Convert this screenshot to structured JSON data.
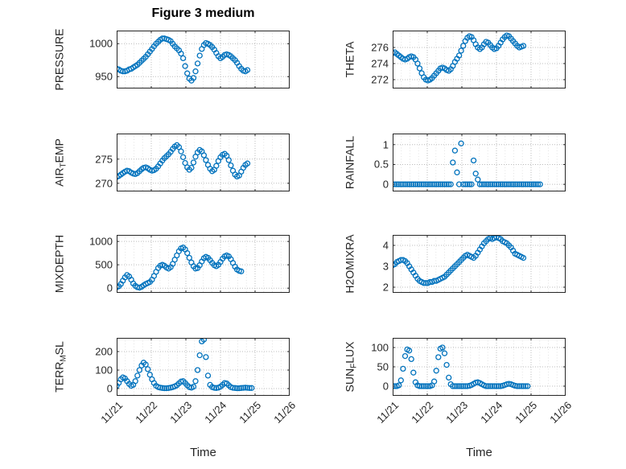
{
  "title": "Figure 3 medium",
  "xlabel": "Time",
  "x_tick_labels": [
    "11/21",
    "11/22",
    "11/23",
    "11/24",
    "11/25",
    "11/26"
  ],
  "colors": {
    "marker": "#0072BD",
    "axes": "#262626",
    "grid": "#bcbcbc",
    "grid_minor": "#e3e3e3",
    "text": "#262626",
    "background": "#ffffff"
  },
  "chart_data": [
    {
      "type": "scatter",
      "ylabel": {
        "pre": "PRESSURE",
        "sub": "",
        "post": ""
      },
      "yticks": [
        950,
        1000
      ],
      "ylim": [
        932,
        1020
      ],
      "xlim": [
        0,
        5
      ],
      "x": [
        0,
        0.06,
        0.12,
        0.18,
        0.24,
        0.3,
        0.36,
        0.42,
        0.48,
        0.54,
        0.6,
        0.66,
        0.72,
        0.78,
        0.84,
        0.9,
        0.96,
        1.02,
        1.08,
        1.14,
        1.2,
        1.26,
        1.32,
        1.38,
        1.44,
        1.5,
        1.56,
        1.62,
        1.68,
        1.74,
        1.8,
        1.86,
        1.92,
        1.98,
        2.04,
        2.1,
        2.16,
        2.22,
        2.28,
        2.34,
        2.4,
        2.46,
        2.52,
        2.58,
        2.64,
        2.7,
        2.76,
        2.82,
        2.88,
        2.94,
        3,
        3.06,
        3.12,
        3.18,
        3.24,
        3.3,
        3.36,
        3.42,
        3.48,
        3.54,
        3.6,
        3.66,
        3.72,
        3.78
      ],
      "y": [
        962,
        961,
        959,
        958,
        958,
        959,
        961,
        962,
        964,
        966,
        968,
        971,
        974,
        977,
        980,
        984,
        988,
        992,
        996,
        1000,
        1003,
        1006,
        1008,
        1008,
        1007,
        1006,
        1004,
        1000,
        996,
        993,
        990,
        985,
        978,
        966,
        955,
        947,
        944,
        948,
        958,
        970,
        982,
        992,
        998,
        1001,
        1000,
        998,
        995,
        991,
        986,
        981,
        978,
        980,
        983,
        984,
        983,
        981,
        978,
        975,
        971,
        966,
        962,
        959,
        958,
        960
      ]
    },
    {
      "type": "scatter",
      "ylabel": {
        "pre": "THETA",
        "sub": "",
        "post": ""
      },
      "yticks": [
        272,
        274,
        276
      ],
      "ylim": [
        270.9,
        278.1
      ],
      "xlim": [
        0,
        5
      ],
      "x": [
        0,
        0.06,
        0.12,
        0.18,
        0.24,
        0.3,
        0.36,
        0.42,
        0.48,
        0.54,
        0.6,
        0.66,
        0.72,
        0.78,
        0.84,
        0.9,
        0.96,
        1.02,
        1.08,
        1.14,
        1.2,
        1.26,
        1.32,
        1.38,
        1.44,
        1.5,
        1.56,
        1.62,
        1.68,
        1.74,
        1.8,
        1.86,
        1.92,
        1.98,
        2.04,
        2.1,
        2.16,
        2.22,
        2.28,
        2.34,
        2.4,
        2.46,
        2.52,
        2.58,
        2.64,
        2.7,
        2.76,
        2.82,
        2.88,
        2.94,
        3,
        3.06,
        3.12,
        3.18,
        3.24,
        3.3,
        3.36,
        3.42,
        3.48,
        3.54,
        3.6,
        3.66,
        3.72,
        3.78
      ],
      "y": [
        275.3,
        275.4,
        275.2,
        275,
        274.8,
        274.6,
        274.5,
        274.6,
        274.8,
        274.9,
        274.8,
        274.5,
        274,
        273.4,
        272.8,
        272.3,
        272,
        271.9,
        272,
        272.2,
        272.5,
        272.8,
        273.1,
        273.4,
        273.5,
        273.4,
        273.2,
        273.1,
        273.3,
        273.7,
        274.2,
        274.6,
        275,
        275.6,
        276.2,
        276.8,
        277.2,
        277.4,
        277.3,
        276.9,
        276.4,
        276,
        275.8,
        276,
        276.4,
        276.7,
        276.6,
        276.3,
        276,
        275.8,
        275.9,
        276.2,
        276.6,
        277,
        277.3,
        277.5,
        277.4,
        277.1,
        276.8,
        276.5,
        276.2,
        276,
        276.1,
        276.2
      ]
    },
    {
      "type": "scatter",
      "ylabel": {
        "pre": "AIR",
        "sub": "T",
        "post": "EMP"
      },
      "yticks": [
        270,
        275
      ],
      "ylim": [
        268.3,
        280.3
      ],
      "xlim": [
        0,
        5
      ],
      "x": [
        0,
        0.06,
        0.12,
        0.18,
        0.24,
        0.3,
        0.36,
        0.42,
        0.48,
        0.54,
        0.6,
        0.66,
        0.72,
        0.78,
        0.84,
        0.9,
        0.96,
        1.02,
        1.08,
        1.14,
        1.2,
        1.26,
        1.32,
        1.38,
        1.44,
        1.5,
        1.56,
        1.62,
        1.68,
        1.74,
        1.8,
        1.86,
        1.92,
        1.98,
        2.04,
        2.1,
        2.16,
        2.22,
        2.28,
        2.34,
        2.4,
        2.46,
        2.52,
        2.58,
        2.64,
        2.7,
        2.76,
        2.82,
        2.88,
        2.94,
        3,
        3.06,
        3.12,
        3.18,
        3.24,
        3.3,
        3.36,
        3.42,
        3.48,
        3.54,
        3.6,
        3.66,
        3.72,
        3.78
      ],
      "y": [
        271.3,
        271.5,
        271.8,
        272.1,
        272.4,
        272.6,
        272.5,
        272.2,
        272,
        271.9,
        272.1,
        272.5,
        272.9,
        273.2,
        273.3,
        273.1,
        272.8,
        272.6,
        272.7,
        273,
        273.5,
        274.1,
        274.7,
        275.2,
        275.6,
        276,
        276.5,
        277.1,
        277.6,
        277.9,
        277.5,
        276.6,
        275.4,
        274.2,
        273.3,
        272.8,
        273.2,
        274.3,
        275.5,
        276.4,
        276.9,
        276.6,
        275.8,
        274.8,
        273.8,
        273,
        272.5,
        272.8,
        273.6,
        274.6,
        275.4,
        275.9,
        276.1,
        275.7,
        274.8,
        273.7,
        272.6,
        271.8,
        271.4,
        271.6,
        272.4,
        273.2,
        273.8,
        274.1
      ]
    },
    {
      "type": "scatter",
      "ylabel": {
        "pre": "RAINFALL",
        "sub": "",
        "post": ""
      },
      "yticks": [
        0,
        0.5,
        1
      ],
      "ylim": [
        -0.18,
        1.28
      ],
      "xlim": [
        0,
        5
      ],
      "x": [
        0,
        0.06,
        0.12,
        0.18,
        0.24,
        0.3,
        0.36,
        0.42,
        0.48,
        0.54,
        0.6,
        0.66,
        0.72,
        0.78,
        0.84,
        0.9,
        0.96,
        1.02,
        1.08,
        1.14,
        1.2,
        1.26,
        1.32,
        1.38,
        1.44,
        1.5,
        1.56,
        1.62,
        1.68,
        1.74,
        1.8,
        1.86,
        1.92,
        1.98,
        2.04,
        2.1,
        2.16,
        2.22,
        2.28,
        2.34,
        2.4,
        2.46,
        2.52,
        2.58,
        2.64,
        2.7,
        2.76,
        2.82,
        2.88,
        2.94,
        3,
        3.06,
        3.12,
        3.18,
        3.24,
        3.3,
        3.36,
        3.42,
        3.48,
        3.54,
        3.6,
        3.66,
        3.72,
        3.78,
        3.84,
        3.9,
        3.96,
        4.02,
        4.08,
        4.14,
        4.2,
        4.26
      ],
      "y": [
        0,
        0,
        0,
        0,
        0,
        0,
        0,
        0,
        0,
        0,
        0,
        0,
        0,
        0,
        0,
        0,
        0,
        0,
        0,
        0,
        0,
        0,
        0,
        0,
        0,
        0,
        0,
        0,
        0,
        0.55,
        0.85,
        0.3,
        0,
        1.03,
        0,
        0,
        0,
        0,
        0,
        0.6,
        0.27,
        0.12,
        0,
        0,
        0,
        0,
        0,
        0,
        0,
        0,
        0,
        0,
        0,
        0,
        0,
        0,
        0,
        0,
        0,
        0,
        0,
        0,
        0,
        0,
        0,
        0,
        0,
        0,
        0,
        0,
        0,
        0
      ]
    },
    {
      "type": "scatter",
      "ylabel": {
        "pre": "MIXDEPTH",
        "sub": "",
        "post": ""
      },
      "yticks": [
        0,
        500,
        1000
      ],
      "ylim": [
        -100,
        1140
      ],
      "xlim": [
        0,
        5
      ],
      "x": [
        0,
        0.06,
        0.12,
        0.18,
        0.24,
        0.3,
        0.36,
        0.42,
        0.48,
        0.54,
        0.6,
        0.66,
        0.72,
        0.78,
        0.84,
        0.9,
        0.96,
        1.02,
        1.08,
        1.14,
        1.2,
        1.26,
        1.32,
        1.38,
        1.44,
        1.5,
        1.56,
        1.62,
        1.68,
        1.74,
        1.8,
        1.86,
        1.92,
        1.98,
        2.04,
        2.1,
        2.16,
        2.22,
        2.28,
        2.34,
        2.4,
        2.46,
        2.52,
        2.58,
        2.64,
        2.7,
        2.76,
        2.82,
        2.88,
        2.94,
        3,
        3.06,
        3.12,
        3.18,
        3.24,
        3.3,
        3.36,
        3.42,
        3.48,
        3.54,
        3.6
      ],
      "y": [
        20,
        40,
        90,
        160,
        230,
        280,
        250,
        180,
        100,
        50,
        20,
        10,
        30,
        60,
        90,
        110,
        130,
        180,
        260,
        350,
        430,
        480,
        500,
        480,
        440,
        420,
        450,
        520,
        610,
        700,
        790,
        850,
        870,
        830,
        750,
        650,
        550,
        470,
        420,
        430,
        490,
        570,
        640,
        670,
        650,
        600,
        540,
        490,
        470,
        500,
        560,
        630,
        680,
        700,
        680,
        620,
        540,
        460,
        400,
        370,
        360
      ]
    },
    {
      "type": "scatter",
      "ylabel": {
        "pre": "H2OMIXRA",
        "sub": "",
        "post": ""
      },
      "yticks": [
        2,
        3,
        4
      ],
      "ylim": [
        1.73,
        4.5
      ],
      "xlim": [
        0,
        5
      ],
      "x": [
        0,
        0.06,
        0.12,
        0.18,
        0.24,
        0.3,
        0.36,
        0.42,
        0.48,
        0.54,
        0.6,
        0.66,
        0.72,
        0.78,
        0.84,
        0.9,
        0.96,
        1.02,
        1.08,
        1.14,
        1.2,
        1.26,
        1.32,
        1.38,
        1.44,
        1.5,
        1.56,
        1.62,
        1.68,
        1.74,
        1.8,
        1.86,
        1.92,
        1.98,
        2.04,
        2.1,
        2.16,
        2.22,
        2.28,
        2.34,
        2.4,
        2.46,
        2.52,
        2.58,
        2.64,
        2.7,
        2.76,
        2.82,
        2.88,
        2.94,
        3,
        3.06,
        3.12,
        3.18,
        3.24,
        3.3,
        3.36,
        3.42,
        3.48,
        3.54,
        3.6,
        3.66,
        3.72,
        3.78
      ],
      "y": [
        3.05,
        3.1,
        3.2,
        3.25,
        3.3,
        3.3,
        3.25,
        3.15,
        3,
        2.85,
        2.7,
        2.55,
        2.4,
        2.3,
        2.25,
        2.2,
        2.2,
        2.2,
        2.25,
        2.25,
        2.3,
        2.3,
        2.35,
        2.4,
        2.45,
        2.5,
        2.6,
        2.7,
        2.8,
        2.9,
        3,
        3.1,
        3.2,
        3.3,
        3.4,
        3.5,
        3.55,
        3.5,
        3.45,
        3.4,
        3.5,
        3.65,
        3.8,
        3.95,
        4.1,
        4.2,
        4.3,
        4.35,
        4.3,
        4.35,
        4.4,
        4.35,
        4.3,
        4.2,
        4.15,
        4.1,
        4,
        3.9,
        3.75,
        3.6,
        3.55,
        3.5,
        3.45,
        3.4
      ]
    },
    {
      "type": "scatter",
      "ylabel": {
        "pre": "TERR",
        "sub": "M",
        "post": "SL"
      },
      "yticks": [
        0,
        100,
        200
      ],
      "ylim": [
        -39,
        274
      ],
      "xlim": [
        0,
        5
      ],
      "x": [
        0,
        0.06,
        0.12,
        0.18,
        0.24,
        0.3,
        0.36,
        0.42,
        0.48,
        0.54,
        0.6,
        0.66,
        0.72,
        0.78,
        0.84,
        0.9,
        0.96,
        1.02,
        1.08,
        1.14,
        1.2,
        1.26,
        1.32,
        1.38,
        1.44,
        1.5,
        1.56,
        1.62,
        1.68,
        1.74,
        1.8,
        1.86,
        1.92,
        1.98,
        2.04,
        2.1,
        2.16,
        2.22,
        2.28,
        2.34,
        2.4,
        2.46,
        2.52,
        2.58,
        2.64,
        2.7,
        2.76,
        2.82,
        2.88,
        2.94,
        3,
        3.06,
        3.12,
        3.18,
        3.24,
        3.3,
        3.36,
        3.42,
        3.48,
        3.54,
        3.6,
        3.66,
        3.72,
        3.78,
        3.84,
        3.9
      ],
      "y": [
        15,
        30,
        50,
        60,
        55,
        40,
        25,
        15,
        20,
        40,
        70,
        100,
        125,
        140,
        130,
        105,
        75,
        50,
        30,
        15,
        8,
        5,
        3,
        2,
        2,
        3,
        5,
        8,
        12,
        18,
        28,
        38,
        40,
        30,
        18,
        8,
        5,
        10,
        40,
        100,
        180,
        255,
        265,
        170,
        70,
        20,
        8,
        4,
        3,
        5,
        10,
        20,
        30,
        28,
        18,
        8,
        4,
        3,
        2,
        2,
        3,
        4,
        5,
        4,
        3,
        3
      ]
    },
    {
      "type": "scatter",
      "ylabel": {
        "pre": "SUN",
        "sub": "F",
        "post": "LUX"
      },
      "yticks": [
        0,
        50,
        100
      ],
      "ylim": [
        -25,
        125
      ],
      "xlim": [
        0,
        5
      ],
      "x": [
        0,
        0.06,
        0.12,
        0.18,
        0.24,
        0.3,
        0.36,
        0.42,
        0.48,
        0.54,
        0.6,
        0.66,
        0.72,
        0.78,
        0.84,
        0.9,
        0.96,
        1.02,
        1.08,
        1.14,
        1.2,
        1.26,
        1.32,
        1.38,
        1.44,
        1.5,
        1.56,
        1.62,
        1.68,
        1.74,
        1.8,
        1.86,
        1.92,
        1.98,
        2.04,
        2.1,
        2.16,
        2.22,
        2.28,
        2.34,
        2.4,
        2.46,
        2.52,
        2.58,
        2.64,
        2.7,
        2.76,
        2.82,
        2.88,
        2.94,
        3,
        3.06,
        3.12,
        3.18,
        3.24,
        3.3,
        3.36,
        3.42,
        3.48,
        3.54,
        3.6,
        3.66,
        3.72,
        3.78,
        3.84,
        3.9
      ],
      "y": [
        0,
        0,
        0,
        2,
        15,
        45,
        78,
        95,
        92,
        70,
        35,
        10,
        2,
        0,
        0,
        0,
        0,
        0,
        0,
        2,
        12,
        40,
        75,
        97,
        100,
        85,
        55,
        22,
        5,
        0,
        0,
        0,
        0,
        0,
        0,
        0,
        0,
        1,
        3,
        6,
        9,
        10,
        8,
        5,
        2,
        0,
        0,
        0,
        0,
        0,
        0,
        0,
        0,
        1,
        3,
        5,
        6,
        5,
        3,
        1,
        0,
        0,
        0,
        0,
        0,
        0
      ]
    }
  ]
}
